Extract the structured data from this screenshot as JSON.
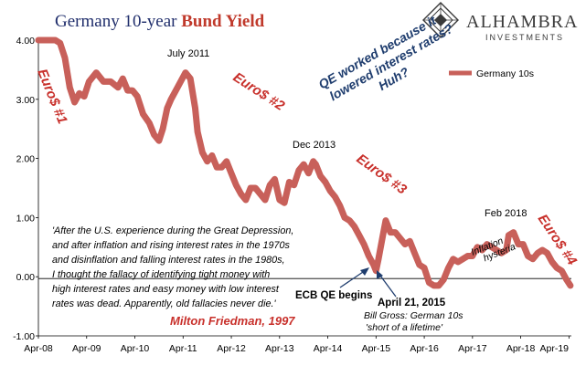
{
  "title_part1": "Germany 10-year ",
  "title_part2": "Bund Yield",
  "logo": {
    "name": "ALHAMBRA",
    "sub": "INVESTMENTS"
  },
  "colors": {
    "series": "#c8605a",
    "title_blue": "#1f2d6b",
    "accent_red": "#c8302b",
    "qe_blue": "#1f3d6e"
  },
  "chart_data": {
    "type": "line",
    "title": "Germany 10-year Bund Yield",
    "x_ticks": [
      "Apr-08",
      "Apr-09",
      "Apr-10",
      "Apr-11",
      "Apr-12",
      "Apr-13",
      "Apr-14",
      "Apr-15",
      "Apr-16",
      "Apr-17",
      "Apr-18",
      "Apr-19"
    ],
    "y_ticks": [
      "4.00",
      "3.00",
      "2.00",
      "1.00",
      "0.00",
      "-1.00"
    ],
    "ylim": [
      -1.0,
      4.0
    ],
    "xlim": [
      2008.25,
      2019.3
    ],
    "grid": false,
    "legend_position": "top-right",
    "series": [
      {
        "name": "Germany 10s",
        "x": [
          2008.25,
          2008.4,
          2008.5,
          2008.6,
          2008.7,
          2008.8,
          2008.9,
          2009.0,
          2009.1,
          2009.2,
          2009.3,
          2009.45,
          2009.6,
          2009.75,
          2009.9,
          2010.0,
          2010.1,
          2010.2,
          2010.3,
          2010.42,
          2010.55,
          2010.65,
          2010.75,
          2010.83,
          2010.92,
          2011.0,
          2011.1,
          2011.2,
          2011.3,
          2011.4,
          2011.5,
          2011.55,
          2011.65,
          2011.75,
          2011.85,
          2011.95,
          2012.05,
          2012.15,
          2012.25,
          2012.35,
          2012.45,
          2012.55,
          2012.65,
          2012.75,
          2012.85,
          2012.95,
          2013.05,
          2013.15,
          2013.25,
          2013.35,
          2013.45,
          2013.55,
          2013.65,
          2013.75,
          2013.85,
          2013.95,
          2014.0,
          2014.1,
          2014.2,
          2014.3,
          2014.4,
          2014.5,
          2014.6,
          2014.7,
          2014.8,
          2014.9,
          2015.0,
          2015.1,
          2015.2,
          2015.25,
          2015.3,
          2015.38,
          2015.45,
          2015.55,
          2015.65,
          2015.75,
          2015.85,
          2015.95,
          2016.05,
          2016.15,
          2016.25,
          2016.35,
          2016.45,
          2016.55,
          2016.65,
          2016.75,
          2016.85,
          2016.95,
          2017.05,
          2017.15,
          2017.25,
          2017.35,
          2017.45,
          2017.55,
          2017.65,
          2017.75,
          2017.85,
          2017.95,
          2018.0,
          2018.1,
          2018.2,
          2018.3,
          2018.4,
          2018.5,
          2018.6,
          2018.7,
          2018.8,
          2018.9,
          2019.0,
          2019.1,
          2019.2,
          2019.28
        ],
        "values": [
          4.05,
          4.1,
          4.4,
          4.3,
          3.95,
          3.7,
          3.2,
          2.95,
          3.1,
          3.05,
          3.3,
          3.45,
          3.3,
          3.3,
          3.2,
          3.35,
          3.15,
          3.15,
          3.05,
          2.75,
          2.6,
          2.4,
          2.3,
          2.5,
          2.85,
          3.0,
          3.15,
          3.3,
          3.45,
          3.35,
          2.85,
          2.45,
          2.1,
          1.95,
          2.05,
          1.85,
          1.85,
          1.95,
          1.75,
          1.55,
          1.4,
          1.3,
          1.5,
          1.5,
          1.4,
          1.3,
          1.55,
          1.65,
          1.3,
          1.25,
          1.6,
          1.55,
          1.8,
          1.9,
          1.75,
          1.95,
          1.9,
          1.7,
          1.6,
          1.45,
          1.35,
          1.2,
          1.0,
          0.95,
          0.85,
          0.7,
          0.55,
          0.35,
          0.2,
          0.1,
          0.3,
          0.65,
          0.95,
          0.75,
          0.75,
          0.65,
          0.55,
          0.6,
          0.4,
          0.2,
          0.15,
          -0.1,
          -0.15,
          -0.15,
          -0.05,
          0.15,
          0.3,
          0.25,
          0.3,
          0.35,
          0.35,
          0.5,
          0.45,
          0.55,
          0.5,
          0.45,
          0.4,
          0.45,
          0.7,
          0.75,
          0.55,
          0.55,
          0.35,
          0.3,
          0.4,
          0.45,
          0.4,
          0.25,
          0.15,
          0.1,
          -0.05,
          -0.15
        ]
      }
    ],
    "annotations": {
      "july2011": "July 2011",
      "dec2013": "Dec 2013",
      "feb2018": "Feb 2018",
      "euro1": "Euro$ #1",
      "euro2": "Euro$ #2",
      "euro3": "Euro$ #3",
      "euro4": "Euro$ #4",
      "qe_text": [
        "QE worked because it",
        "lowered interest rates?",
        "Huh?"
      ],
      "inflation": [
        "Inflation",
        "hysteria"
      ],
      "quote": [
        "'After the U.S. experience during the Great Depression,",
        "and after inflation and rising interest rates in the 1970s",
        "and disinflation and falling interest rates in the 1980s,",
        "I thought the fallacy of identifying tight money with",
        "high interest rates and  easy money with low interest",
        "rates was dead. Apparently, old fallacies never die.'"
      ],
      "milton": "Milton Friedman, 1997",
      "ecb": "ECB QE begins",
      "april2015": "April 21, 2015",
      "gross": [
        "Bill Gross: German 10s",
        "'short of a lifetime'"
      ]
    }
  }
}
